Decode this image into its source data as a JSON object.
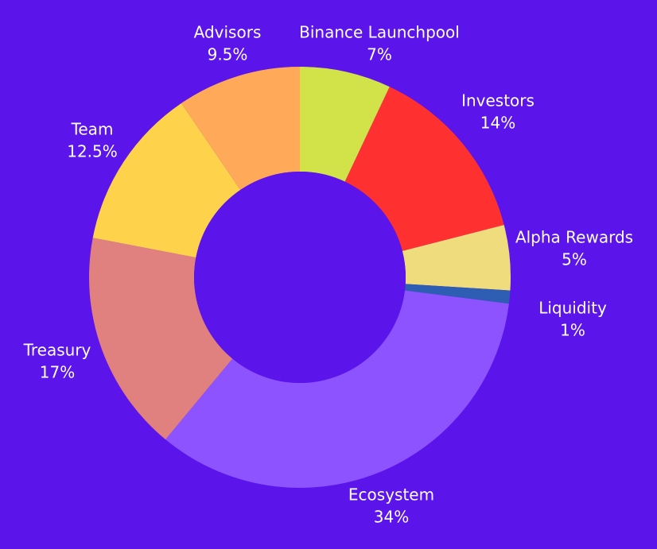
{
  "chart_data": {
    "type": "pie",
    "background": "#5b14e9",
    "slices": [
      {
        "name": "Binance Launchpool",
        "value": 7,
        "value_label": "7%",
        "color": "#d2e34a"
      },
      {
        "name": "Investors",
        "value": 14,
        "value_label": "14%",
        "color": "#ff3130"
      },
      {
        "name": "Alpha Rewards",
        "value": 5,
        "value_label": "5%",
        "color": "#efdc7c"
      },
      {
        "name": "Liquidity",
        "value": 1,
        "value_label": "1%",
        "color": "#2d5eb4"
      },
      {
        "name": "Ecosystem",
        "value": 34,
        "value_label": "34%",
        "color": "#8c53ff"
      },
      {
        "name": "Treasury",
        "value": 17,
        "value_label": "17%",
        "color": "#e0807f"
      },
      {
        "name": "Team",
        "value": 12.5,
        "value_label": "12.5%",
        "color": "#ffd24c"
      },
      {
        "name": "Advisors",
        "value": 9.5,
        "value_label": "9.5%",
        "color": "#ffa959"
      }
    ]
  }
}
